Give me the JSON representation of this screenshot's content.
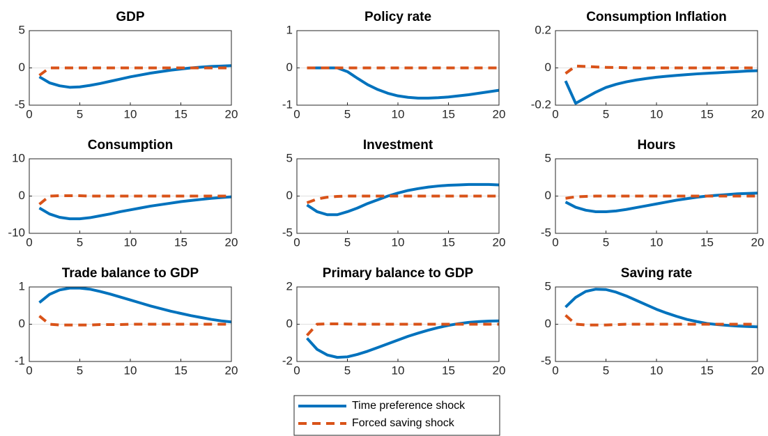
{
  "chart_data": [
    {
      "type": "line",
      "title": "GDP",
      "x": [
        1,
        2,
        3,
        4,
        5,
        6,
        7,
        8,
        9,
        10,
        11,
        12,
        13,
        14,
        15,
        16,
        17,
        18,
        19,
        20
      ],
      "series": [
        {
          "values": [
            -1.2,
            -2.0,
            -2.4,
            -2.6,
            -2.55,
            -2.35,
            -2.1,
            -1.8,
            -1.5,
            -1.2,
            -0.95,
            -0.7,
            -0.5,
            -0.3,
            -0.15,
            0,
            0.1,
            0.2,
            0.25,
            0.3
          ]
        },
        {
          "values": [
            -1.0,
            0,
            0,
            0,
            0,
            0,
            0,
            0,
            0,
            0,
            0,
            0,
            0,
            0,
            0,
            0,
            0,
            0,
            0,
            0
          ]
        }
      ],
      "xlim": [
        0,
        20
      ],
      "xticks": [
        0,
        5,
        10,
        15,
        20
      ],
      "ylim": [
        -5,
        5
      ],
      "yticks": [
        -5,
        0,
        5
      ],
      "grid": true
    },
    {
      "type": "line",
      "title": "Policy rate",
      "x": [
        1,
        2,
        3,
        4,
        5,
        6,
        7,
        8,
        9,
        10,
        11,
        12,
        13,
        14,
        15,
        16,
        17,
        18,
        19,
        20
      ],
      "series": [
        {
          "values": [
            0,
            0,
            0,
            0,
            -0.1,
            -0.28,
            -0.45,
            -0.58,
            -0.68,
            -0.75,
            -0.79,
            -0.81,
            -0.81,
            -0.8,
            -0.78,
            -0.75,
            -0.72,
            -0.68,
            -0.64,
            -0.6
          ]
        },
        {
          "values": [
            0,
            0,
            0,
            0,
            0,
            0,
            0,
            0,
            0,
            0,
            0,
            0,
            0,
            0,
            0,
            0,
            0,
            0,
            0,
            0
          ]
        }
      ],
      "xlim": [
        0,
        20
      ],
      "xticks": [
        0,
        5,
        10,
        15,
        20
      ],
      "ylim": [
        -1,
        1
      ],
      "yticks": [
        -1,
        0,
        1
      ],
      "grid": true
    },
    {
      "type": "line",
      "title": "Consumption Inflation",
      "x": [
        1,
        2,
        3,
        4,
        5,
        6,
        7,
        8,
        9,
        10,
        11,
        12,
        13,
        14,
        15,
        16,
        17,
        18,
        19,
        20
      ],
      "series": [
        {
          "values": [
            -0.07,
            -0.19,
            -0.16,
            -0.13,
            -0.105,
            -0.088,
            -0.075,
            -0.065,
            -0.057,
            -0.05,
            -0.045,
            -0.04,
            -0.036,
            -0.032,
            -0.029,
            -0.026,
            -0.023,
            -0.02,
            -0.017,
            -0.015
          ]
        },
        {
          "values": [
            -0.03,
            0.01,
            0.008,
            0.005,
            0.003,
            0.002,
            0.001,
            0,
            0,
            0,
            0,
            0,
            0,
            0,
            0,
            0,
            0,
            0,
            0,
            0
          ]
        }
      ],
      "xlim": [
        0,
        20
      ],
      "xticks": [
        0,
        5,
        10,
        15,
        20
      ],
      "ylim": [
        -0.2,
        0.2
      ],
      "yticks": [
        -0.2,
        0,
        0.2
      ],
      "grid": true
    },
    {
      "type": "line",
      "title": "Consumption",
      "x": [
        1,
        2,
        3,
        4,
        5,
        6,
        7,
        8,
        9,
        10,
        11,
        12,
        13,
        14,
        15,
        16,
        17,
        18,
        19,
        20
      ],
      "series": [
        {
          "values": [
            -3.2,
            -4.8,
            -5.7,
            -6.1,
            -6.1,
            -5.8,
            -5.3,
            -4.8,
            -4.2,
            -3.7,
            -3.2,
            -2.7,
            -2.3,
            -1.9,
            -1.5,
            -1.2,
            -0.9,
            -0.6,
            -0.4,
            -0.2
          ]
        },
        {
          "values": [
            -2.2,
            0,
            0.1,
            0.1,
            0.1,
            0,
            0,
            0,
            0,
            0,
            0,
            0,
            0,
            0,
            0,
            0,
            0,
            0,
            0,
            0
          ]
        }
      ],
      "xlim": [
        0,
        20
      ],
      "xticks": [
        0,
        5,
        10,
        15,
        20
      ],
      "ylim": [
        -10,
        10
      ],
      "yticks": [
        -10,
        0,
        10
      ],
      "grid": true
    },
    {
      "type": "line",
      "title": "Investment",
      "x": [
        1,
        2,
        3,
        4,
        5,
        6,
        7,
        8,
        9,
        10,
        11,
        12,
        13,
        14,
        15,
        16,
        17,
        18,
        19,
        20
      ],
      "series": [
        {
          "values": [
            -1.2,
            -2.1,
            -2.5,
            -2.5,
            -2.1,
            -1.6,
            -1.0,
            -0.5,
            0,
            0.4,
            0.75,
            1.0,
            1.2,
            1.35,
            1.45,
            1.5,
            1.55,
            1.55,
            1.55,
            1.5
          ]
        },
        {
          "values": [
            -0.9,
            -0.4,
            -0.15,
            -0.05,
            0,
            0,
            0,
            0,
            0,
            0,
            0,
            0,
            0,
            0,
            0,
            0,
            0,
            0,
            0,
            0
          ]
        }
      ],
      "xlim": [
        0,
        20
      ],
      "xticks": [
        0,
        5,
        10,
        15,
        20
      ],
      "ylim": [
        -5,
        5
      ],
      "yticks": [
        -5,
        0,
        5
      ],
      "grid": true
    },
    {
      "type": "line",
      "title": "Hours",
      "x": [
        1,
        2,
        3,
        4,
        5,
        6,
        7,
        8,
        9,
        10,
        11,
        12,
        13,
        14,
        15,
        16,
        17,
        18,
        19,
        20
      ],
      "series": [
        {
          "values": [
            -0.8,
            -1.5,
            -1.9,
            -2.1,
            -2.1,
            -2.0,
            -1.8,
            -1.55,
            -1.3,
            -1.05,
            -0.8,
            -0.55,
            -0.35,
            -0.15,
            0,
            0.1,
            0.2,
            0.3,
            0.35,
            0.4
          ]
        },
        {
          "values": [
            -0.3,
            -0.1,
            -0.05,
            0,
            0,
            0,
            0,
            0,
            0,
            0,
            0,
            0,
            0,
            0,
            0,
            0,
            0,
            0,
            0,
            0
          ]
        }
      ],
      "xlim": [
        0,
        20
      ],
      "xticks": [
        0,
        5,
        10,
        15,
        20
      ],
      "ylim": [
        -5,
        5
      ],
      "yticks": [
        -5,
        0,
        5
      ],
      "grid": true
    },
    {
      "type": "line",
      "title": "Trade balance to GDP",
      "x": [
        1,
        2,
        3,
        4,
        5,
        6,
        7,
        8,
        9,
        10,
        11,
        12,
        13,
        14,
        15,
        16,
        17,
        18,
        19,
        20
      ],
      "series": [
        {
          "values": [
            0.58,
            0.8,
            0.92,
            0.97,
            0.97,
            0.94,
            0.88,
            0.81,
            0.73,
            0.65,
            0.57,
            0.49,
            0.42,
            0.35,
            0.29,
            0.23,
            0.18,
            0.13,
            0.09,
            0.06
          ]
        },
        {
          "values": [
            0.22,
            0,
            -0.02,
            -0.02,
            -0.02,
            -0.02,
            -0.01,
            -0.01,
            -0.01,
            0,
            0,
            0,
            0,
            0,
            0,
            0,
            0,
            0,
            0,
            0
          ]
        }
      ],
      "xlim": [
        0,
        20
      ],
      "xticks": [
        0,
        5,
        10,
        15,
        20
      ],
      "ylim": [
        -1,
        1
      ],
      "yticks": [
        -1,
        0,
        1
      ],
      "grid": true
    },
    {
      "type": "line",
      "title": "Primary balance to GDP",
      "x": [
        1,
        2,
        3,
        4,
        5,
        6,
        7,
        8,
        9,
        10,
        11,
        12,
        13,
        14,
        15,
        16,
        17,
        18,
        19,
        20
      ],
      "series": [
        {
          "values": [
            -0.75,
            -1.35,
            -1.65,
            -1.78,
            -1.75,
            -1.62,
            -1.45,
            -1.25,
            -1.05,
            -0.85,
            -0.65,
            -0.48,
            -0.32,
            -0.18,
            -0.06,
            0.03,
            0.1,
            0.14,
            0.17,
            0.18
          ]
        },
        {
          "values": [
            -0.6,
            0,
            0.02,
            0.02,
            0.01,
            0,
            0,
            0,
            0,
            0,
            0,
            0,
            0,
            0,
            0,
            0,
            0,
            0,
            0,
            0
          ]
        }
      ],
      "xlim": [
        0,
        20
      ],
      "xticks": [
        0,
        5,
        10,
        15,
        20
      ],
      "ylim": [
        -2,
        2
      ],
      "yticks": [
        -2,
        0,
        2
      ],
      "grid": true
    },
    {
      "type": "line",
      "title": "Saving rate",
      "x": [
        1,
        2,
        3,
        4,
        5,
        6,
        7,
        8,
        9,
        10,
        11,
        12,
        13,
        14,
        15,
        16,
        17,
        18,
        19,
        20
      ],
      "series": [
        {
          "values": [
            2.3,
            3.6,
            4.4,
            4.7,
            4.65,
            4.3,
            3.8,
            3.2,
            2.6,
            2.0,
            1.5,
            1.05,
            0.65,
            0.35,
            0.1,
            -0.05,
            -0.15,
            -0.25,
            -0.3,
            -0.35
          ]
        },
        {
          "values": [
            1.2,
            0,
            -0.1,
            -0.1,
            -0.1,
            -0.05,
            0,
            0,
            0,
            0,
            0,
            0,
            0,
            0,
            0,
            0,
            0,
            0,
            0,
            0
          ]
        }
      ],
      "xlim": [
        0,
        20
      ],
      "xticks": [
        0,
        5,
        10,
        15,
        20
      ],
      "ylim": [
        -5,
        5
      ],
      "yticks": [
        -5,
        0,
        5
      ],
      "grid": true
    }
  ],
  "legend": {
    "entries": [
      {
        "name": "Time preference shock",
        "color": "#0072BD",
        "dash": false
      },
      {
        "name": "Forced saving shock",
        "color": "#D95319",
        "dash": true
      }
    ]
  }
}
